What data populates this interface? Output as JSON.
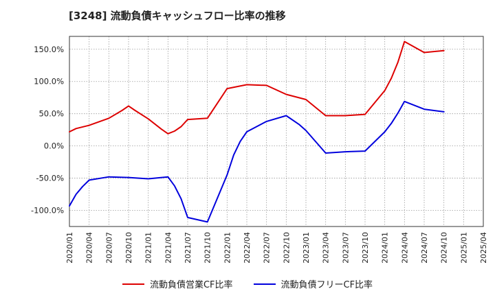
{
  "title": "[3248]  流動負債キャッシュフロー比率の推移",
  "chart_data": {
    "type": "line",
    "x_ticks": [
      "2020/01",
      "2020/04",
      "2020/07",
      "2020/10",
      "2021/01",
      "2021/04",
      "2021/07",
      "2021/10",
      "2022/01",
      "2022/04",
      "2022/07",
      "2022/10",
      "2023/01",
      "2023/04",
      "2023/07",
      "2023/10",
      "2024/01",
      "2024/04",
      "2024/07",
      "2024/10",
      "2025/01",
      "2025/04"
    ],
    "y_ticks": [
      "150.0%",
      "100.0%",
      "50.0%",
      "0.0%",
      "-50.0%",
      "-100.0%"
    ],
    "y_tick_values": [
      150,
      100,
      50,
      0,
      -50,
      -100
    ],
    "ylim": [
      -125,
      170
    ],
    "grid": true,
    "legend_position": "bottom",
    "series": [
      {
        "name": "流動負債営業CF比率",
        "color": "#dd0000",
        "points": [
          [
            "2020/01",
            22
          ],
          [
            "2020/02",
            27
          ],
          [
            "2020/04",
            32
          ],
          [
            "2020/07",
            43
          ],
          [
            "2020/09",
            55
          ],
          [
            "2020/10",
            62
          ],
          [
            "2020/11",
            55
          ],
          [
            "2021/01",
            42
          ],
          [
            "2021/03",
            26
          ],
          [
            "2021/04",
            19
          ],
          [
            "2021/05",
            23
          ],
          [
            "2021/06",
            30
          ],
          [
            "2021/07",
            41
          ],
          [
            "2021/10",
            43
          ],
          [
            "2022/01",
            89
          ],
          [
            "2022/04",
            95
          ],
          [
            "2022/07",
            94
          ],
          [
            "2022/10",
            80
          ],
          [
            "2023/01",
            72
          ],
          [
            "2023/04",
            47
          ],
          [
            "2023/07",
            47
          ],
          [
            "2023/10",
            49
          ],
          [
            "2024/01",
            86
          ],
          [
            "2024/02",
            105
          ],
          [
            "2024/03",
            130
          ],
          [
            "2024/04",
            162
          ],
          [
            "2024/07",
            145
          ],
          [
            "2024/10",
            148
          ]
        ]
      },
      {
        "name": "流動負債フリーCF比率",
        "color": "#0000dd",
        "points": [
          [
            "2020/01",
            -93
          ],
          [
            "2020/02",
            -75
          ],
          [
            "2020/03",
            -63
          ],
          [
            "2020/04",
            -53
          ],
          [
            "2020/07",
            -48
          ],
          [
            "2020/10",
            -49
          ],
          [
            "2021/01",
            -51
          ],
          [
            "2021/04",
            -48
          ],
          [
            "2021/05",
            -62
          ],
          [
            "2021/06",
            -82
          ],
          [
            "2021/07",
            -111
          ],
          [
            "2021/10",
            -118
          ],
          [
            "2022/01",
            -45
          ],
          [
            "2022/02",
            -14
          ],
          [
            "2022/03",
            7
          ],
          [
            "2022/04",
            22
          ],
          [
            "2022/07",
            38
          ],
          [
            "2022/10",
            47
          ],
          [
            "2022/12",
            33
          ],
          [
            "2023/01",
            24
          ],
          [
            "2023/04",
            -11
          ],
          [
            "2023/07",
            -9
          ],
          [
            "2023/10",
            -8
          ],
          [
            "2024/01",
            22
          ],
          [
            "2024/02",
            35
          ],
          [
            "2024/03",
            51
          ],
          [
            "2024/04",
            69
          ],
          [
            "2024/07",
            57
          ],
          [
            "2024/10",
            53
          ]
        ]
      }
    ]
  }
}
